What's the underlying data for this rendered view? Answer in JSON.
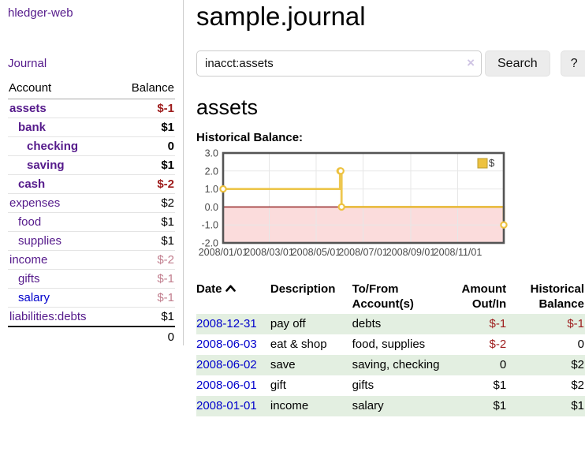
{
  "app": {
    "brand": "hledger-web"
  },
  "sidebar": {
    "nav": {
      "journal": "Journal"
    },
    "header": {
      "account": "Account",
      "balance": "Balance"
    },
    "accounts": [
      {
        "name": "assets",
        "balance": "$-1",
        "depth": 1,
        "bold": true,
        "balance_class": "neg"
      },
      {
        "name": "bank",
        "balance": "$1",
        "depth": 2,
        "bold": true,
        "balance_class": ""
      },
      {
        "name": "checking",
        "balance": "0",
        "depth": 3,
        "bold": true,
        "balance_class": ""
      },
      {
        "name": "saving",
        "balance": "$1",
        "depth": 3,
        "bold": true,
        "balance_class": ""
      },
      {
        "name": "cash",
        "balance": "$-2",
        "depth": 2,
        "bold": true,
        "balance_class": "neg"
      },
      {
        "name": "expenses",
        "balance": "$2",
        "depth": 1,
        "bold": false,
        "balance_class": ""
      },
      {
        "name": "food",
        "balance": "$1",
        "depth": 2,
        "bold": false,
        "balance_class": ""
      },
      {
        "name": "supplies",
        "balance": "$1",
        "depth": 2,
        "bold": false,
        "balance_class": ""
      },
      {
        "name": "income",
        "balance": "$-2",
        "depth": 1,
        "bold": false,
        "balance_class": "neg-muted"
      },
      {
        "name": "gifts",
        "balance": "$-1",
        "depth": 2,
        "bold": false,
        "balance_class": "neg-muted"
      },
      {
        "name": "salary",
        "balance": "$-1",
        "depth": 2,
        "bold": false,
        "balance_class": "neg-muted",
        "link_class": "blue"
      },
      {
        "name": "liabilities:debts",
        "balance": "$1",
        "depth": 1,
        "bold": false,
        "balance_class": ""
      }
    ],
    "total": "0"
  },
  "header": {
    "title": "sample.journal"
  },
  "search": {
    "value": "inacct:assets",
    "button_label": "Search",
    "help_label": "?",
    "clear_glyph": "×"
  },
  "main": {
    "account_title": "assets",
    "chart_label": "Historical Balance:"
  },
  "chart_data": {
    "type": "line",
    "style": "step",
    "title": "Historical Balance:",
    "series": [
      {
        "name": "$",
        "color": "#edc240",
        "points": [
          [
            "2008-01-01",
            1
          ],
          [
            "2008-06-01",
            2
          ],
          [
            "2008-06-02",
            2
          ],
          [
            "2008-06-03",
            0
          ],
          [
            "2008-12-31",
            -1
          ]
        ]
      }
    ],
    "xrange": [
      "2008-01-01",
      "2008-12-31"
    ],
    "ylim": [
      -2.0,
      3.0
    ],
    "yticks": [
      3.0,
      2.0,
      1.0,
      0.0,
      -1.0,
      -2.0
    ],
    "xticks": [
      "2008/01/01",
      "2008/03/01",
      "2008/05/01",
      "2008/07/01",
      "2008/09/01",
      "2008/11/01"
    ],
    "grid": true,
    "legend_position": "top-right",
    "negative_region_color": "#fbdcdc",
    "zero_line_color": "#8b1414"
  },
  "register": {
    "headers": [
      "Date",
      "Description",
      "To/From Account(s)",
      "Amount Out/In",
      "Historical Balance"
    ],
    "sort": {
      "column": "Date",
      "direction": "asc"
    },
    "rows": [
      {
        "date": "2008-12-31",
        "description": "pay off",
        "accounts": "debts",
        "amount": "$-1",
        "amount_neg": true,
        "balance": "$-1",
        "balance_neg": true
      },
      {
        "date": "2008-06-03",
        "description": "eat & shop",
        "accounts": "food, supplies",
        "amount": "$-2",
        "amount_neg": true,
        "balance": "0",
        "balance_neg": false
      },
      {
        "date": "2008-06-02",
        "description": "save",
        "accounts": "saving, checking",
        "amount": "0",
        "amount_neg": false,
        "balance": "$2",
        "balance_neg": false
      },
      {
        "date": "2008-06-01",
        "description": "gift",
        "accounts": "gifts",
        "amount": "$1",
        "amount_neg": false,
        "balance": "$2",
        "balance_neg": false
      },
      {
        "date": "2008-01-01",
        "description": "income",
        "accounts": "salary",
        "amount": "$1",
        "amount_neg": false,
        "balance": "$1",
        "balance_neg": false
      }
    ]
  },
  "colors": {
    "link_purple": "#551a8b",
    "link_blue": "#0000cc",
    "negative_strong": "#9d1b1b",
    "negative_muted": "#c17d8d",
    "row_stripe_green": "#e3efe1",
    "chart_gold": "#edc240",
    "chart_negative_pink": "#fbdcdc",
    "chart_zero_line": "#8b1414"
  }
}
